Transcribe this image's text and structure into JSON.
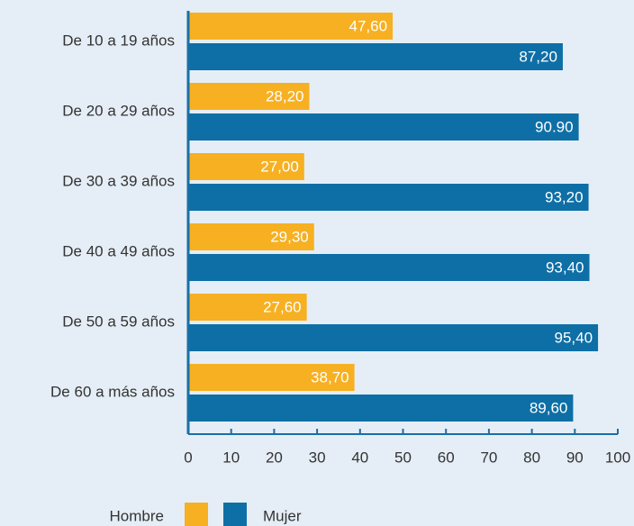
{
  "chart_data": {
    "type": "bar",
    "orientation": "horizontal",
    "categories": [
      "De 10 a 19 años",
      "De 20 a 29 años",
      "De 30 a 39 años",
      "De 40 a 49 años",
      "De 50 a 59 años",
      "De 60 a más años"
    ],
    "series": [
      {
        "name": "Hombre",
        "color": "#f6b022",
        "values": [
          47.6,
          28.2,
          27.0,
          29.3,
          27.6,
          38.7
        ],
        "value_labels": [
          "47,60",
          "28,20",
          "27,00",
          "29,30",
          "27,60",
          "38,70"
        ]
      },
      {
        "name": "Mujer",
        "color": "#0e6fa6",
        "values": [
          87.2,
          90.9,
          93.2,
          93.4,
          95.4,
          89.6
        ],
        "value_labels": [
          "87,20",
          "90.90",
          "93,20",
          "93,40",
          "95,40",
          "89,60"
        ]
      }
    ],
    "xlim": [
      0,
      100
    ],
    "xticks": [
      0,
      10,
      20,
      30,
      40,
      50,
      60,
      70,
      80,
      90,
      100
    ],
    "legend": "bottom-left"
  }
}
